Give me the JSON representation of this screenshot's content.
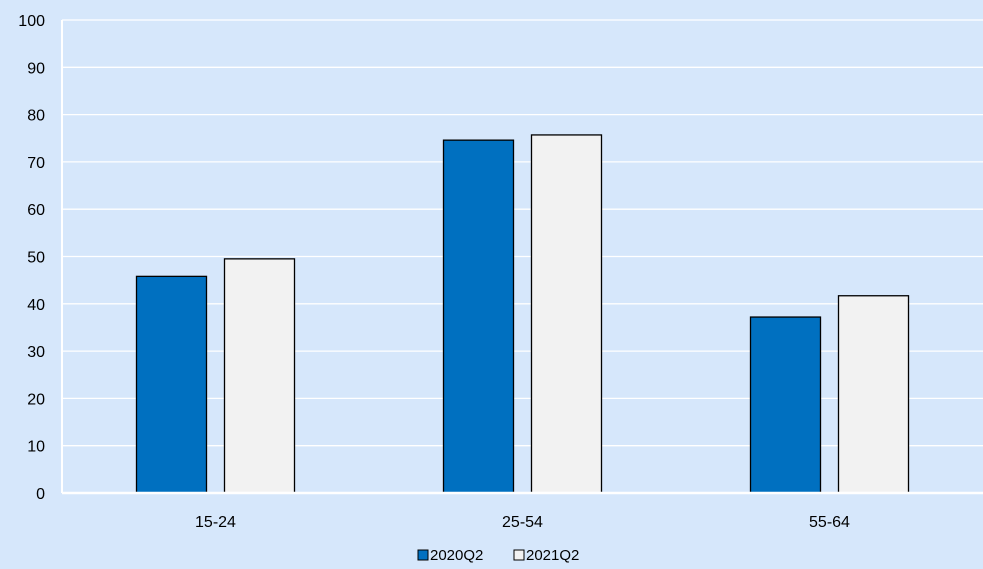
{
  "chart_data": {
    "type": "bar",
    "title": "",
    "xlabel": "",
    "ylabel": "",
    "categories": [
      "15-24",
      "25-54",
      "55-64"
    ],
    "series": [
      {
        "name": "2020Q2",
        "values": [
          45.8,
          74.6,
          37.2
        ],
        "color": "#0070c0"
      },
      {
        "name": "2021Q2",
        "values": [
          49.5,
          75.7,
          41.7
        ],
        "color": "#f2f2f2"
      }
    ],
    "ylim": [
      0,
      100
    ],
    "yticks": [
      0,
      10,
      20,
      30,
      40,
      50,
      60,
      70,
      80,
      90,
      100
    ],
    "grid": true,
    "legend_position": "bottom-center",
    "colors": {
      "background": "#d6e7fb",
      "gridline": "#ffffff",
      "bar_outline": "#000000"
    }
  }
}
